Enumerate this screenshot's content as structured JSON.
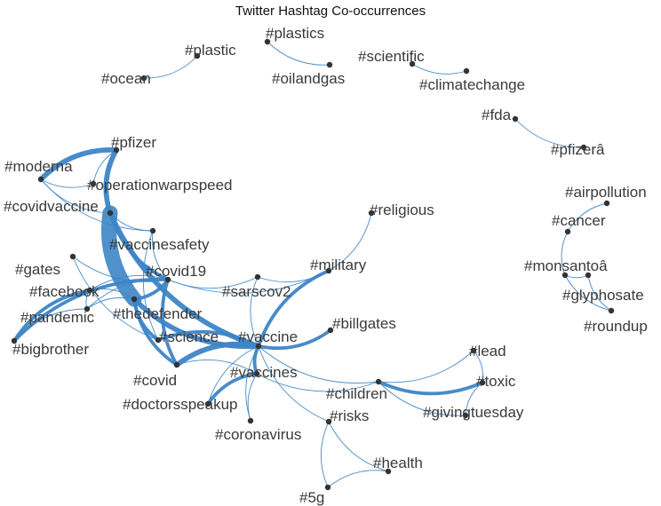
{
  "title": "Twitter Hashtag Co-occurrences",
  "colors": {
    "edge": "#3d85c6",
    "node": "#333333",
    "label": "#3a3a3a"
  },
  "nodes": [
    {
      "id": "ocean",
      "label": "#ocean"
    },
    {
      "id": "plastic",
      "label": "#plastic"
    },
    {
      "id": "plastics",
      "label": "#plastics"
    },
    {
      "id": "oilandgas",
      "label": "#oilandgas"
    },
    {
      "id": "scientific",
      "label": "#scientific"
    },
    {
      "id": "climatechange",
      "label": "#climatechange"
    },
    {
      "id": "fda",
      "label": "#fda"
    },
    {
      "id": "pfizera",
      "label": "#pfizerâ"
    },
    {
      "id": "airpollution",
      "label": "#airpollution"
    },
    {
      "id": "cancer",
      "label": "#cancer"
    },
    {
      "id": "monsantoa",
      "label": "#monsantoâ"
    },
    {
      "id": "glyphosate",
      "label": "#glyphosate"
    },
    {
      "id": "roundup",
      "label": "#roundup"
    },
    {
      "id": "pfizer",
      "label": "#pfizer"
    },
    {
      "id": "moderna",
      "label": "#moderna"
    },
    {
      "id": "operationwarpspeed",
      "label": "#operationwarpspeed"
    },
    {
      "id": "covidvaccine",
      "label": "#covidvaccine"
    },
    {
      "id": "religious",
      "label": "#religious"
    },
    {
      "id": "vaccinesafety",
      "label": "#vaccinesafety"
    },
    {
      "id": "gates",
      "label": "#gates"
    },
    {
      "id": "covid19",
      "label": "#covid19"
    },
    {
      "id": "military",
      "label": "#military"
    },
    {
      "id": "facebook",
      "label": "#facebook"
    },
    {
      "id": "sarscov2",
      "label": "#sarscov2"
    },
    {
      "id": "pandemic",
      "label": "#pandemic"
    },
    {
      "id": "thedefender",
      "label": "#thedefender"
    },
    {
      "id": "billgates",
      "label": "#billgates"
    },
    {
      "id": "bigbrother",
      "label": "#bigbrother"
    },
    {
      "id": "science",
      "label": "#science"
    },
    {
      "id": "vaccine",
      "label": "#vaccine"
    },
    {
      "id": "lead",
      "label": "#lead"
    },
    {
      "id": "vaccines",
      "label": "#vaccines"
    },
    {
      "id": "covid",
      "label": "#covid"
    },
    {
      "id": "toxic",
      "label": "#toxic"
    },
    {
      "id": "children",
      "label": "#children"
    },
    {
      "id": "doctorsspeakup",
      "label": "#doctorsspeakup"
    },
    {
      "id": "givingtuesday",
      "label": "#givingtuesday"
    },
    {
      "id": "risks",
      "label": "#risks"
    },
    {
      "id": "coronavirus",
      "label": "#coronavirus"
    },
    {
      "id": "health",
      "label": "#health"
    },
    {
      "id": "5g",
      "label": "#5g"
    }
  ],
  "edges": [
    {
      "source": "ocean",
      "target": "plastic",
      "weight": 1
    },
    {
      "source": "plastics",
      "target": "oilandgas",
      "weight": 1
    },
    {
      "source": "scientific",
      "target": "climatechange",
      "weight": 1
    },
    {
      "source": "fda",
      "target": "pfizera",
      "weight": 1
    },
    {
      "source": "airpollution",
      "target": "cancer",
      "weight": 1
    },
    {
      "source": "cancer",
      "target": "monsantoa",
      "weight": 1
    },
    {
      "source": "monsantoa",
      "target": "glyphosate",
      "weight": 1
    },
    {
      "source": "monsantoa",
      "target": "roundup",
      "weight": 1
    },
    {
      "source": "glyphosate",
      "target": "roundup",
      "weight": 1
    },
    {
      "source": "covidvaccine",
      "target": "thedefender",
      "weight": 9
    },
    {
      "source": "pfizer",
      "target": "moderna",
      "weight": 3
    },
    {
      "source": "pfizer",
      "target": "covidvaccine",
      "weight": 3
    },
    {
      "source": "pfizer",
      "target": "operationwarpspeed",
      "weight": 1
    },
    {
      "source": "moderna",
      "target": "operationwarpspeed",
      "weight": 1
    },
    {
      "source": "moderna",
      "target": "covidvaccine",
      "weight": 1
    },
    {
      "source": "moderna",
      "target": "vaccinesafety",
      "weight": 1
    },
    {
      "source": "covidvaccine",
      "target": "vaccine",
      "weight": 3
    },
    {
      "source": "covidvaccine",
      "target": "covid19",
      "weight": 2
    },
    {
      "source": "covidvaccine",
      "target": "vaccinesafety",
      "weight": 1
    },
    {
      "source": "vaccinesafety",
      "target": "covid19",
      "weight": 1
    },
    {
      "source": "vaccinesafety",
      "target": "science",
      "weight": 1
    },
    {
      "source": "thedefender",
      "target": "vaccine",
      "weight": 3
    },
    {
      "source": "thedefender",
      "target": "covid19",
      "weight": 2
    },
    {
      "source": "thedefender",
      "target": "science",
      "weight": 2
    },
    {
      "source": "thedefender",
      "target": "covid",
      "weight": 2
    },
    {
      "source": "thedefender",
      "target": "facebook",
      "weight": 1
    },
    {
      "source": "thedefender",
      "target": "pandemic",
      "weight": 1
    },
    {
      "source": "gates",
      "target": "covid19",
      "weight": 1
    },
    {
      "source": "gates",
      "target": "science",
      "weight": 1
    },
    {
      "source": "covid19",
      "target": "military",
      "weight": 1
    },
    {
      "source": "covid19",
      "target": "sarscov2",
      "weight": 1
    },
    {
      "source": "covid19",
      "target": "facebook",
      "weight": 1
    },
    {
      "source": "covid19",
      "target": "pandemic",
      "weight": 1
    },
    {
      "source": "covid19",
      "target": "bigbrother",
      "weight": 2
    },
    {
      "source": "covid19",
      "target": "covid",
      "weight": 2
    },
    {
      "source": "facebook",
      "target": "bigbrother",
      "weight": 2
    },
    {
      "source": "facebook",
      "target": "pandemic",
      "weight": 1
    },
    {
      "source": "pandemic",
      "target": "bigbrother",
      "weight": 1
    },
    {
      "source": "sarscov2",
      "target": "vaccine",
      "weight": 1
    },
    {
      "source": "sarscov2",
      "target": "military",
      "weight": 1
    },
    {
      "source": "military",
      "target": "religious",
      "weight": 1
    },
    {
      "source": "military",
      "target": "vaccine",
      "weight": 2
    },
    {
      "source": "vaccine",
      "target": "billgates",
      "weight": 2
    },
    {
      "source": "vaccine",
      "target": "covid",
      "weight": 3
    },
    {
      "source": "vaccine",
      "target": "science",
      "weight": 2
    },
    {
      "source": "vaccine",
      "target": "vaccines",
      "weight": 2
    },
    {
      "source": "vaccine",
      "target": "children",
      "weight": 1
    },
    {
      "source": "vaccine",
      "target": "doctorsspeakup",
      "weight": 1
    },
    {
      "source": "vaccine",
      "target": "coronavirus",
      "weight": 1
    },
    {
      "source": "vaccine",
      "target": "risks",
      "weight": 1
    },
    {
      "source": "vaccines",
      "target": "doctorsspeakup",
      "weight": 2
    },
    {
      "source": "vaccines",
      "target": "covid",
      "weight": 1
    },
    {
      "source": "vaccines",
      "target": "children",
      "weight": 1
    },
    {
      "source": "vaccines",
      "target": "coronavirus",
      "weight": 1
    },
    {
      "source": "children",
      "target": "toxic",
      "weight": 2
    },
    {
      "source": "children",
      "target": "lead",
      "weight": 1
    },
    {
      "source": "children",
      "target": "givingtuesday",
      "weight": 1
    },
    {
      "source": "toxic",
      "target": "givingtuesday",
      "weight": 1
    },
    {
      "source": "toxic",
      "target": "lead",
      "weight": 1
    },
    {
      "source": "risks",
      "target": "health",
      "weight": 1
    },
    {
      "source": "risks",
      "target": "5g",
      "weight": 1
    },
    {
      "source": "health",
      "target": "5g",
      "weight": 1
    }
  ]
}
